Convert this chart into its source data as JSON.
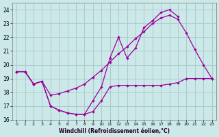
{
  "xlabel": "Windchill (Refroidissement éolien,°C)",
  "x": [
    0,
    1,
    2,
    3,
    4,
    5,
    6,
    7,
    8,
    9,
    10,
    11,
    12,
    13,
    14,
    15,
    16,
    17,
    18,
    19,
    20,
    21,
    22,
    23
  ],
  "line1": [
    19.5,
    19.5,
    18.6,
    18.8,
    17.8,
    17.9,
    18.1,
    18.3,
    18.6,
    19.1,
    19.6,
    20.2,
    20.8,
    21.3,
    21.9,
    22.4,
    23.0,
    23.4,
    23.6,
    23.3,
    22.3,
    21.1,
    20.0,
    19.0
  ],
  "line2": [
    19.5,
    19.5,
    18.6,
    18.8,
    17.0,
    16.7,
    16.5,
    16.4,
    16.4,
    16.6,
    17.4,
    18.4,
    18.5,
    18.5,
    18.5,
    18.5,
    18.5,
    18.5,
    18.6,
    18.7,
    19.0,
    19.0,
    19.0,
    19.0
  ],
  "line3": [
    19.5,
    19.5,
    18.6,
    18.8,
    17.0,
    16.7,
    16.5,
    16.4,
    16.4,
    17.4,
    18.4,
    20.5,
    22.0,
    20.5,
    21.2,
    22.7,
    23.2,
    23.8,
    24.0,
    23.5,
    null,
    null,
    null,
    null
  ],
  "bg_color": "#cce8e8",
  "grid_color": "#aacccc",
  "line_color": "#990099",
  "ylim": [
    16,
    24.5
  ],
  "xlim": [
    -0.5,
    23.5
  ],
  "yticks": [
    16,
    17,
    18,
    19,
    20,
    21,
    22,
    23,
    24
  ],
  "xticks": [
    0,
    1,
    2,
    3,
    4,
    5,
    6,
    7,
    8,
    9,
    10,
    11,
    12,
    13,
    14,
    15,
    16,
    17,
    18,
    19,
    20,
    21,
    22,
    23
  ]
}
